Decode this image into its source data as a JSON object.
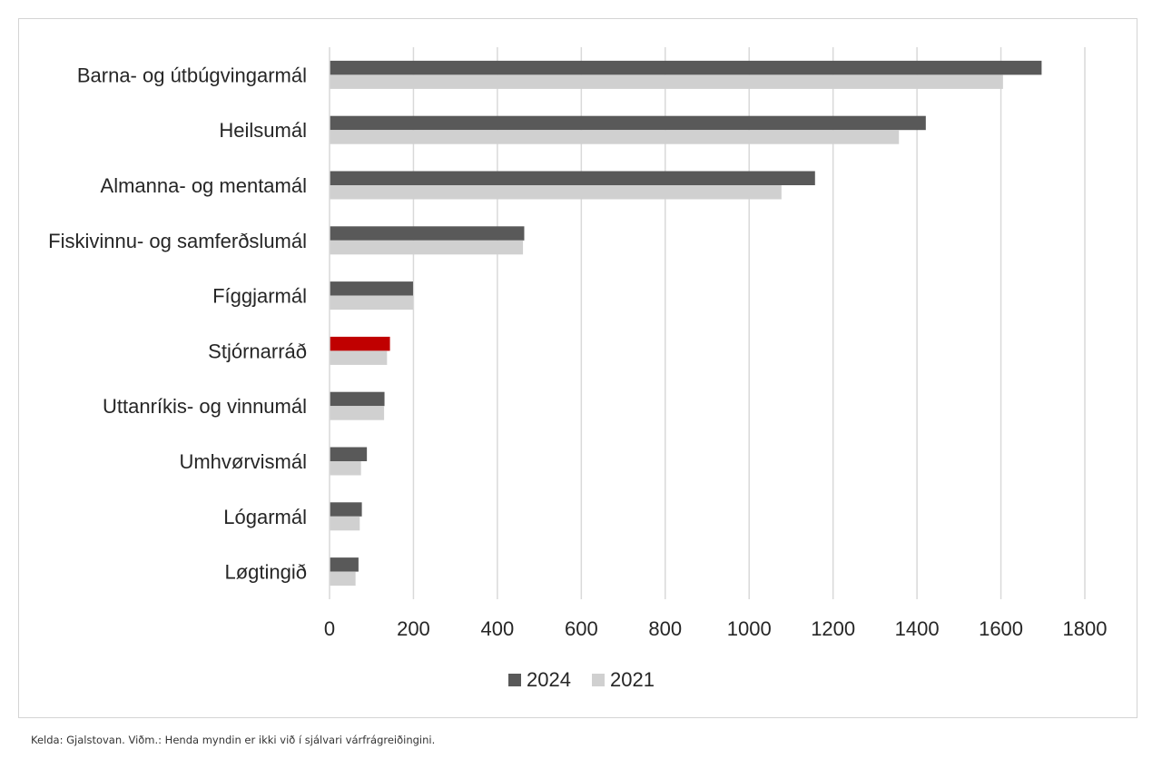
{
  "chart_data": {
    "type": "bar",
    "orientation": "horizontal",
    "categories": [
      "Barna- og útbúgvingarmál",
      "Heilsumál",
      "Almanna- og mentamál",
      "Fiskivinnu- og samferðslumál",
      "Fíggjarmál",
      "Stjórnarráð",
      "Uttanríkis- og vinnumál",
      "Umhvørvismál",
      "Lógarmál",
      "Løgtingið"
    ],
    "series": [
      {
        "name": "2024",
        "color": "#595959",
        "values": [
          1697,
          1421,
          1157,
          464,
          199,
          144,
          131,
          89,
          77,
          69
        ]
      },
      {
        "name": "2021",
        "color": "#d0d0d0",
        "values": [
          1605,
          1357,
          1077,
          461,
          199,
          137,
          130,
          75,
          72,
          62
        ]
      }
    ],
    "highlight": {
      "category": "Stjórnarráð",
      "series": "2024",
      "color": "#c00000"
    },
    "xlim": [
      0,
      1800
    ],
    "xticks": [
      "0",
      "200",
      "400",
      "600",
      "800",
      "1000",
      "1200",
      "1400",
      "1600",
      "1800"
    ],
    "grid": "vertical",
    "legend_position": "bottom",
    "title": "",
    "xlabel": "",
    "ylabel": ""
  },
  "footnote": "Kelda: Gjalstovan. Viðm.: Henda myndin er ikki við í sjálvari várfrágreiðingini."
}
